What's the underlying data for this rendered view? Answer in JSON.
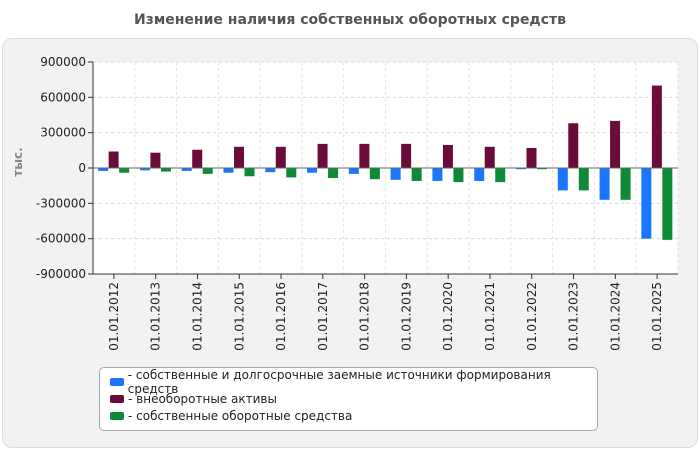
{
  "title": "Изменение наличия собственных оборотных средств",
  "chart_data": {
    "type": "bar",
    "ylabel": "тыс.",
    "ylim": [
      -900000,
      900000
    ],
    "yticks": [
      900000,
      600000,
      300000,
      0,
      -300000,
      -600000,
      -900000
    ],
    "ytick_labels": [
      "900000",
      "600000",
      "300000",
      "0",
      "-300000",
      "-600000",
      "-900000"
    ],
    "grid": true,
    "categories": [
      "01.01.2012",
      "01.01.2013",
      "01.01.2014",
      "01.01.2015",
      "01.01.2016",
      "01.01.2017",
      "01.01.2018",
      "01.01.2019",
      "01.01.2020",
      "01.01.2021",
      "01.01.2022",
      "01.01.2023",
      "01.01.2024",
      "01.01.2025"
    ],
    "series": [
      {
        "name": "- собственные и долгосрочные заемные источники формирования средств",
        "color": "#1a75ff",
        "values": [
          -25000,
          -20000,
          -25000,
          -40000,
          -35000,
          -40000,
          -50000,
          -100000,
          -110000,
          -110000,
          -10000,
          -190000,
          -270000,
          -600000
        ]
      },
      {
        "name": "- внеоборотные активы",
        "color": "#6b0b3a",
        "values": [
          140000,
          130000,
          155000,
          180000,
          180000,
          205000,
          205000,
          205000,
          195000,
          180000,
          170000,
          380000,
          400000,
          700000
        ]
      },
      {
        "name": "- собственные оборотные средства",
        "color": "#0d8a35",
        "values": [
          -40000,
          -30000,
          -50000,
          -70000,
          -80000,
          -85000,
          -95000,
          -110000,
          -120000,
          -120000,
          -10000,
          -190000,
          -270000,
          -610000
        ]
      }
    ],
    "legend_position": "bottom"
  }
}
